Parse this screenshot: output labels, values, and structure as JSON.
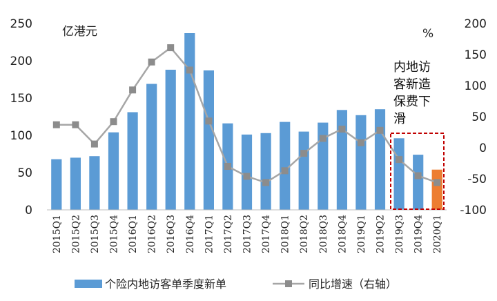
{
  "chart_data": {
    "type": "bar",
    "categories": [
      "2015Q1",
      "2015Q2",
      "2015Q3",
      "2015Q4",
      "2016Q1",
      "2016Q2",
      "2016Q3",
      "2016Q4",
      "2017Q1",
      "2017Q2",
      "2017Q3",
      "2017Q4",
      "2018Q1",
      "2018Q2",
      "2018Q3",
      "2018Q4",
      "2019Q1",
      "2019Q2",
      "2019Q3",
      "2019Q4",
      "2020Q1"
    ],
    "series": [
      {
        "name": "个险内地访客单季度新单",
        "type": "bar",
        "axis": "left",
        "values": [
          68,
          70,
          72,
          104,
          131,
          169,
          188,
          237,
          187,
          116,
          101,
          103,
          118,
          105,
          117,
          134,
          127,
          135,
          96,
          74,
          54
        ],
        "color": "#5B9BD5",
        "highlight_color": "#ED7D31",
        "highlight_index": 20
      },
      {
        "name": "同比增速（右轴）",
        "type": "line",
        "axis": "right",
        "values": [
          37,
          37,
          6,
          42,
          93,
          138,
          161,
          125,
          43,
          -30,
          -46,
          -56,
          -37,
          -9,
          15,
          30,
          8,
          28,
          -19,
          -45,
          -56
        ],
        "color": "#A6A6A6"
      }
    ],
    "left_axis": {
      "unit": "亿港元",
      "ylim": [
        0,
        250
      ],
      "ticks": [
        "0",
        "50",
        "100",
        "150",
        "200",
        "250"
      ]
    },
    "right_axis": {
      "unit": "%",
      "ylim": [
        -100,
        200
      ],
      "ticks": [
        "-100",
        "-50",
        "0",
        "50",
        "100",
        "150",
        "200"
      ]
    },
    "annotation": {
      "lines": [
        "内地访",
        "客新造",
        "保费下",
        "滑"
      ]
    },
    "legend": {
      "position": "bottom"
    }
  }
}
